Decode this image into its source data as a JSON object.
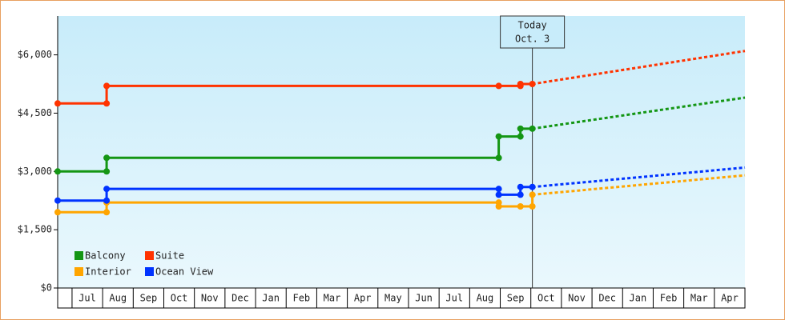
{
  "chart_data": {
    "type": "step-line",
    "ylim": [
      0,
      7000
    ],
    "yticks": [
      {
        "value": 0,
        "label": "$0"
      },
      {
        "value": 1500,
        "label": "$1,500"
      },
      {
        "value": 3000,
        "label": "$3,000"
      },
      {
        "value": 4500,
        "label": "$4,500"
      },
      {
        "value": 6000,
        "label": "$6,000"
      }
    ],
    "xlim": [
      -0.47,
      22
    ],
    "xticks": [
      {
        "value": 0.5,
        "label": "Jul"
      },
      {
        "value": 1.5,
        "label": "Aug"
      },
      {
        "value": 2.5,
        "label": "Sep"
      },
      {
        "value": 3.5,
        "label": "Oct"
      },
      {
        "value": 4.5,
        "label": "Nov"
      },
      {
        "value": 5.5,
        "label": "Dec"
      },
      {
        "value": 6.5,
        "label": "Jan"
      },
      {
        "value": 7.5,
        "label": "Feb"
      },
      {
        "value": 8.5,
        "label": "Mar"
      },
      {
        "value": 9.5,
        "label": "Apr"
      },
      {
        "value": 10.5,
        "label": "May"
      },
      {
        "value": 11.5,
        "label": "Jun"
      },
      {
        "value": 12.5,
        "label": "Jul"
      },
      {
        "value": 13.5,
        "label": "Aug"
      },
      {
        "value": 14.5,
        "label": "Sep"
      },
      {
        "value": 15.5,
        "label": "Oct"
      },
      {
        "value": 16.5,
        "label": "Nov"
      },
      {
        "value": 17.5,
        "label": "Dec"
      },
      {
        "value": 18.5,
        "label": "Jan"
      },
      {
        "value": 19.5,
        "label": "Feb"
      },
      {
        "value": 20.5,
        "label": "Mar"
      },
      {
        "value": 21.5,
        "label": "Apr"
      }
    ],
    "annotation": {
      "x": 15.05,
      "lines": [
        "Today",
        "Oct. 3"
      ]
    },
    "series": [
      {
        "name": "Balcony",
        "color": "#149614",
        "x": [
          -0.47,
          1.13,
          1.13,
          13.95,
          13.95,
          14.66,
          14.66,
          15.05
        ],
        "values": [
          3000,
          3000,
          3350,
          3350,
          3900,
          3900,
          4100,
          4100
        ],
        "forecast": {
          "x": [
            15.05,
            22
          ],
          "values": [
            4100,
            4900
          ]
        }
      },
      {
        "name": "Suite",
        "color": "#ff3300",
        "x": [
          -0.47,
          1.13,
          1.13,
          13.95,
          14.66,
          14.66,
          15.05
        ],
        "values": [
          4750,
          4750,
          5200,
          5200,
          5200,
          5250,
          5250
        ],
        "forecast": {
          "x": [
            15.05,
            22
          ],
          "values": [
            5250,
            6100
          ]
        }
      },
      {
        "name": "Interior",
        "color": "#ffa500",
        "x": [
          -0.47,
          1.13,
          1.13,
          13.95,
          13.95,
          14.66,
          15.05,
          15.05
        ],
        "values": [
          1950,
          1950,
          2200,
          2200,
          2100,
          2100,
          2100,
          2400
        ],
        "forecast": {
          "x": [
            15.05,
            22
          ],
          "values": [
            2400,
            2900
          ]
        }
      },
      {
        "name": "Ocean View",
        "color": "#0033ff",
        "x": [
          -0.47,
          1.13,
          1.13,
          13.95,
          13.95,
          14.66,
          14.66,
          15.05
        ],
        "values": [
          2250,
          2250,
          2550,
          2550,
          2400,
          2400,
          2600,
          2600
        ],
        "forecast": {
          "x": [
            15.05,
            22
          ],
          "values": [
            2600,
            3100
          ]
        }
      }
    ]
  }
}
